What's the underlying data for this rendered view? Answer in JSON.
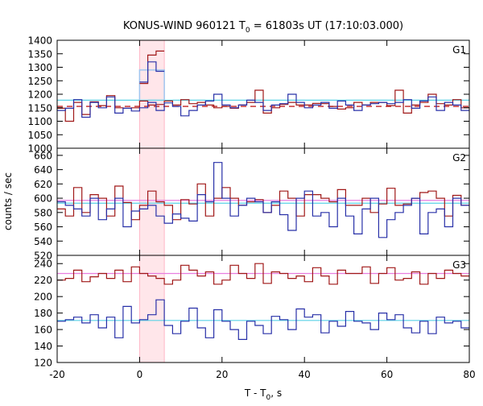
{
  "chart_data": {
    "type": "line",
    "title_main": "KONUS-WIND 960121 T",
    "title_sub": "0",
    "title_rest": " = 61803s UT (17:10:03.000)",
    "xlabel_main": "T - T",
    "xlabel_sub": "0",
    "xlabel_rest": ", s",
    "ylabel": "counts / sec",
    "xlim": [
      -20,
      80
    ],
    "x_ticks": [
      "-20",
      "0",
      "20",
      "40",
      "60",
      "80"
    ],
    "highlight_interval": [
      0,
      6
    ],
    "colors": {
      "red_series": "#a01818",
      "blue_series": "#2830a8",
      "cyan_level": "#5ad2e6",
      "pink_level": "#e87ee0",
      "dashed_red": "#c02020",
      "highlight": "#ffe6ea",
      "highlight_edge": "#ffb6c6"
    },
    "panels": [
      {
        "label": "G1",
        "ylim": [
          1000,
          1400
        ],
        "y_ticks": [
          1000,
          1050,
          1100,
          1150,
          1200,
          1250,
          1300,
          1350,
          1400
        ],
        "x_start": -20,
        "bin_width": 2,
        "red": [
          1148,
          1100,
          1170,
          1125,
          1172,
          1158,
          1195,
          1150,
          1148,
          1150,
          1175,
          1160,
          1162,
          1175,
          1160,
          1180,
          1165,
          1170,
          1160,
          1150,
          1155,
          1148,
          1160,
          1170,
          1215,
          1130,
          1150,
          1162,
          1170,
          1160,
          1160,
          1166,
          1165,
          1155,
          1145,
          1150,
          1170,
          1160,
          1170,
          1170,
          1158,
          1215,
          1130,
          1160,
          1170,
          1200,
          1165,
          1160,
          1180,
          1150
        ],
        "blue": [
          1140,
          1148,
          1180,
          1115,
          1170,
          1150,
          1190,
          1130,
          1148,
          1138,
          1150,
          1170,
          1140,
          1168,
          1155,
          1120,
          1140,
          1160,
          1175,
          1200,
          1160,
          1150,
          1160,
          1178,
          1170,
          1140,
          1160,
          1165,
          1200,
          1170,
          1150,
          1160,
          1170,
          1148,
          1175,
          1160,
          1140,
          1160,
          1165,
          1170,
          1165,
          1170,
          1180,
          1148,
          1175,
          1190,
          1140,
          1170,
          1160,
          1140
        ],
        "highlight_red_x": [
          0,
          2,
          4,
          6
        ],
        "highlight_red_y": [
          1240,
          1345,
          1360
        ],
        "highlight_blue_x": [
          0,
          2,
          4,
          6
        ],
        "highlight_blue_y": [
          1245,
          1320,
          1285
        ],
        "pale_box_x": [
          0,
          6
        ],
        "pale_box_y": 1290,
        "cyan_level": 1178,
        "dashed_level": 1155
      },
      {
        "label": "G2",
        "ylim": [
          520,
          670
        ],
        "y_ticks": [
          520,
          540,
          560,
          580,
          600,
          620,
          640,
          660
        ],
        "x_start": -20,
        "bin_width": 2,
        "red": [
          585,
          575,
          615,
          580,
          605,
          600,
          575,
          617,
          594,
          570,
          590,
          610,
          595,
          590,
          570,
          598,
          592,
          620,
          575,
          600,
          615,
          600,
          590,
          595,
          598,
          580,
          590,
          610,
          600,
          575,
          605,
          605,
          600,
          595,
          612,
          590,
          590,
          600,
          580,
          592,
          614,
          590,
          592,
          600,
          608,
          610,
          600,
          575,
          604,
          590
        ],
        "blue": [
          595,
          590,
          585,
          575,
          600,
          570,
          585,
          600,
          560,
          582,
          585,
          590,
          575,
          565,
          578,
          572,
          568,
          605,
          595,
          650,
          600,
          575,
          590,
          600,
          595,
          580,
          595,
          577,
          555,
          600,
          610,
          575,
          580,
          560,
          600,
          575,
          550,
          585,
          600,
          545,
          570,
          580,
          590,
          600,
          550,
          580,
          585,
          560,
          600,
          590
        ],
        "cyan_level": 593,
        "pink_level": 597
      },
      {
        "label": "G3",
        "ylim": [
          120,
          250
        ],
        "y_ticks": [
          120,
          140,
          160,
          180,
          200,
          220,
          240
        ],
        "x_start": -20,
        "bin_width": 2,
        "red": [
          220,
          222,
          232,
          218,
          224,
          228,
          222,
          232,
          218,
          236,
          228,
          225,
          222,
          215,
          220,
          238,
          232,
          225,
          230,
          215,
          220,
          238,
          228,
          222,
          240,
          216,
          230,
          228,
          222,
          225,
          218,
          235,
          225,
          215,
          232,
          228,
          228,
          236,
          216,
          228,
          235,
          220,
          222,
          230,
          215,
          228,
          222,
          232,
          228,
          225
        ],
        "blue": [
          170,
          172,
          175,
          168,
          178,
          162,
          175,
          150,
          188,
          168,
          172,
          178,
          196,
          165,
          155,
          170,
          186,
          162,
          150,
          184,
          170,
          160,
          148,
          170,
          165,
          155,
          176,
          172,
          160,
          185,
          175,
          178,
          156,
          170,
          164,
          182,
          170,
          168,
          160,
          180,
          172,
          178,
          162,
          156,
          170,
          155,
          175,
          168,
          170,
          162
        ],
        "cyan_level": 171,
        "pink_level": 228
      }
    ]
  }
}
